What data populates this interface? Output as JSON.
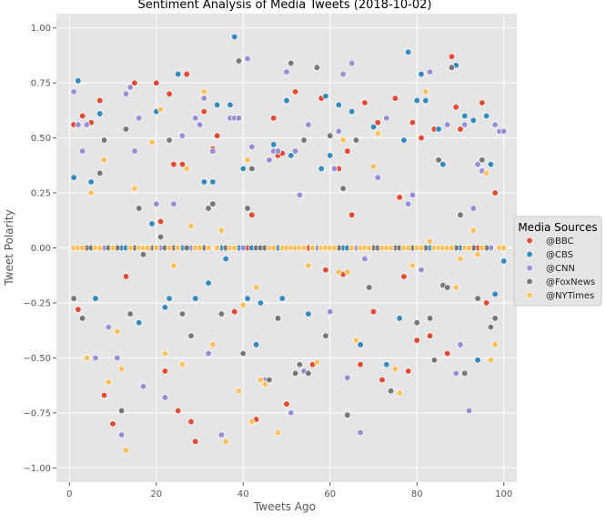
{
  "chart_data": {
    "type": "scatter",
    "title": "Sentiment Analysis of Media Tweets (2018-10-02)",
    "xlabel": "Tweets Ago",
    "ylabel": "Tweet Polarity",
    "xlim": [
      -3,
      103
    ],
    "ylim": [
      -1.0,
      1.0
    ],
    "xticks": [
      0,
      20,
      40,
      60,
      80,
      100
    ],
    "yticks": [
      -1.0,
      -0.75,
      -0.5,
      -0.25,
      0.0,
      0.25,
      0.5,
      0.75,
      1.0
    ],
    "xtick_labels": [
      "0",
      "20",
      "40",
      "60",
      "80",
      "100"
    ],
    "ytick_labels": [
      "−1.00",
      "−0.75",
      "−0.50",
      "−0.25",
      "0.00",
      "0.25",
      "0.50",
      "0.75",
      "1.00"
    ],
    "grid": true,
    "legend": {
      "title": "Media Sources",
      "placement": "center-right outside"
    },
    "series": [
      {
        "name": "@BBC",
        "color": "#e24a33",
        "x": [
          1,
          2,
          3,
          4,
          5,
          6,
          7,
          8,
          9,
          10,
          11,
          12,
          13,
          14,
          15,
          16,
          17,
          18,
          19,
          20,
          21,
          22,
          23,
          24,
          25,
          26,
          27,
          28,
          29,
          30,
          31,
          32,
          33,
          34,
          35,
          36,
          37,
          38,
          39,
          40,
          41,
          42,
          43,
          44,
          45,
          46,
          47,
          48,
          49,
          50,
          51,
          52,
          53,
          54,
          55,
          56,
          57,
          58,
          59,
          60,
          61,
          62,
          63,
          64,
          65,
          66,
          67,
          68,
          69,
          70,
          71,
          72,
          73,
          74,
          75,
          76,
          77,
          78,
          79,
          80,
          81,
          82,
          83,
          84,
          85,
          86,
          87,
          88,
          89,
          90,
          91,
          92,
          93,
          94,
          95,
          96,
          97,
          98,
          99,
          100
        ],
        "y": [
          0.56,
          -0.28,
          0.6,
          0.0,
          0.57,
          0.0,
          0.67,
          -0.67,
          0.0,
          -0.8,
          0.0,
          0.0,
          -0.13,
          0.0,
          0.75,
          0.0,
          0.0,
          0.0,
          0.0,
          0.75,
          0.12,
          -0.56,
          0.7,
          0.38,
          -0.74,
          0.38,
          0.79,
          -0.79,
          -0.88,
          0.0,
          0.62,
          0.0,
          0.45,
          0.51,
          0.0,
          0.0,
          0.0,
          -0.29,
          0.0,
          0.0,
          0.0,
          0.15,
          -0.78,
          0.0,
          0.0,
          0.0,
          0.59,
          0.42,
          0.43,
          -0.71,
          0.0,
          0.71,
          -0.53,
          0.0,
          0.0,
          -0.53,
          0.0,
          0.68,
          -0.1,
          0.0,
          0.0,
          0.36,
          -0.12,
          0.44,
          0.15,
          0.0,
          -0.53,
          0.66,
          0.0,
          -0.29,
          0.57,
          -0.6,
          0.0,
          0.0,
          0.68,
          0.23,
          -0.13,
          -0.56,
          0.57,
          -0.42,
          0.5,
          0.0,
          -0.4,
          0.54,
          0.0,
          0.0,
          -0.48,
          0.87,
          0.64,
          0.54,
          0.0,
          0.0,
          0.0,
          0.0,
          0.66,
          -0.25,
          0.0,
          0.25,
          0.0,
          0.0
        ]
      },
      {
        "name": "@CBS",
        "color": "#348abd",
        "x": [
          1,
          2,
          3,
          4,
          5,
          6,
          7,
          8,
          9,
          10,
          11,
          12,
          13,
          14,
          15,
          16,
          17,
          18,
          19,
          20,
          21,
          22,
          23,
          24,
          25,
          26,
          27,
          28,
          29,
          30,
          31,
          32,
          33,
          34,
          35,
          36,
          37,
          38,
          39,
          40,
          41,
          42,
          43,
          44,
          45,
          46,
          47,
          48,
          49,
          50,
          51,
          52,
          53,
          54,
          55,
          56,
          57,
          58,
          59,
          60,
          61,
          62,
          63,
          64,
          65,
          66,
          67,
          68,
          69,
          70,
          71,
          72,
          73,
          74,
          75,
          76,
          77,
          78,
          79,
          80,
          81,
          82,
          83,
          84,
          85,
          86,
          87,
          88,
          89,
          90,
          91,
          92,
          93,
          94,
          95,
          96,
          97,
          98,
          99,
          100
        ],
        "y": [
          0.32,
          0.76,
          0.0,
          0.0,
          0.3,
          -0.23,
          0.61,
          0.0,
          0.0,
          0.0,
          0.0,
          0.0,
          0.0,
          0.0,
          0.0,
          -0.34,
          0.0,
          0.0,
          0.11,
          0.62,
          0.0,
          -0.27,
          -0.23,
          0.0,
          0.79,
          0.0,
          0.0,
          0.0,
          -0.23,
          0.0,
          0.3,
          -0.16,
          0.3,
          0.65,
          0.0,
          -0.05,
          0.65,
          0.96,
          0.0,
          0.36,
          -0.23,
          0.0,
          -0.44,
          -0.25,
          0.0,
          0.0,
          0.47,
          0.0,
          -0.23,
          0.67,
          0.42,
          0.0,
          0.0,
          0.0,
          -0.3,
          0.0,
          0.0,
          0.36,
          0.69,
          0.42,
          0.0,
          0.65,
          0.0,
          0.0,
          0.62,
          0.0,
          -0.44,
          0.0,
          0.0,
          0.55,
          0.0,
          0.0,
          -0.53,
          0.0,
          0.0,
          -0.32,
          0.49,
          0.89,
          0.0,
          0.67,
          0.79,
          0.67,
          0.0,
          0.0,
          0.54,
          0.38,
          0.0,
          0.0,
          0.83,
          0.0,
          0.6,
          0.0,
          0.58,
          -0.51,
          0.0,
          0.6,
          0.38,
          -0.21,
          0.0,
          -0.06
        ]
      },
      {
        "name": "@CNN",
        "color": "#988ed5",
        "x": [
          1,
          2,
          3,
          4,
          5,
          6,
          7,
          8,
          9,
          10,
          11,
          12,
          13,
          14,
          15,
          16,
          17,
          18,
          19,
          20,
          21,
          22,
          23,
          24,
          25,
          26,
          27,
          28,
          29,
          30,
          31,
          32,
          33,
          34,
          35,
          36,
          37,
          38,
          39,
          40,
          41,
          42,
          43,
          44,
          45,
          46,
          47,
          48,
          49,
          50,
          51,
          52,
          53,
          54,
          55,
          56,
          57,
          58,
          59,
          60,
          61,
          62,
          63,
          64,
          65,
          66,
          67,
          68,
          69,
          70,
          71,
          72,
          73,
          74,
          75,
          76,
          77,
          78,
          79,
          80,
          81,
          82,
          83,
          84,
          85,
          86,
          87,
          88,
          89,
          90,
          91,
          92,
          93,
          94,
          95,
          96,
          97,
          98,
          99,
          100
        ],
        "y": [
          0.71,
          0.56,
          0.44,
          0.56,
          0.0,
          -0.5,
          0.0,
          0.0,
          -0.36,
          0.0,
          -0.5,
          -0.85,
          0.7,
          0.73,
          0.44,
          0.59,
          -0.63,
          0.0,
          0.0,
          0.2,
          0.0,
          -0.68,
          0.0,
          0.2,
          0.0,
          0.51,
          0.0,
          0.0,
          0.59,
          0.56,
          0.68,
          -0.48,
          0.44,
          0.0,
          -0.85,
          0.0,
          0.59,
          0.59,
          0.59,
          0.0,
          0.86,
          0.46,
          0.0,
          0.0,
          -0.6,
          0.4,
          0.44,
          0.44,
          0.0,
          0.8,
          -0.75,
          0.44,
          0.24,
          -0.56,
          0.56,
          0.0,
          0.0,
          0.0,
          0.0,
          -0.29,
          0.36,
          0.53,
          0.79,
          -0.59,
          0.84,
          0.0,
          -0.84,
          -0.05,
          0.0,
          0.0,
          0.32,
          0.0,
          0.59,
          0.0,
          0.0,
          0.0,
          0.0,
          0.2,
          0.24,
          0.0,
          -0.1,
          0.0,
          0.8,
          0.0,
          0.0,
          -0.17,
          0.56,
          0.0,
          -0.57,
          -0.44,
          0.56,
          -0.74,
          0.18,
          0.38,
          0.35,
          0.0,
          0.0,
          0.56,
          0.53,
          0.53
        ]
      },
      {
        "name": "@FoxNews",
        "color": "#777777",
        "x": [
          1,
          2,
          3,
          4,
          5,
          6,
          7,
          8,
          9,
          10,
          11,
          12,
          13,
          14,
          15,
          16,
          17,
          18,
          19,
          20,
          21,
          22,
          23,
          24,
          25,
          26,
          27,
          28,
          29,
          30,
          31,
          32,
          33,
          34,
          35,
          36,
          37,
          38,
          39,
          40,
          41,
          42,
          43,
          44,
          45,
          46,
          47,
          48,
          49,
          50,
          51,
          52,
          53,
          54,
          55,
          56,
          57,
          58,
          59,
          60,
          61,
          62,
          63,
          64,
          65,
          66,
          67,
          68,
          69,
          70,
          71,
          72,
          73,
          74,
          75,
          76,
          77,
          78,
          79,
          80,
          81,
          82,
          83,
          84,
          85,
          86,
          87,
          88,
          89,
          90,
          91,
          92,
          93,
          94,
          95,
          96,
          97,
          98,
          99,
          100
        ],
        "y": [
          -0.23,
          0.0,
          -0.32,
          0.0,
          0.0,
          0.0,
          0.34,
          0.49,
          0.0,
          0.0,
          0.0,
          -0.74,
          0.54,
          -0.3,
          0.0,
          0.18,
          -0.03,
          0.0,
          0.0,
          0.0,
          0.05,
          0.0,
          0.49,
          0.0,
          0.0,
          -0.3,
          0.0,
          -0.4,
          0.0,
          0.0,
          0.0,
          0.18,
          0.2,
          0.0,
          -0.3,
          0.0,
          0.0,
          0.0,
          0.85,
          -0.48,
          0.18,
          0.36,
          0.0,
          0.0,
          0.0,
          -0.6,
          0.0,
          -0.32,
          0.0,
          0.0,
          0.84,
          -0.57,
          -0.53,
          0.49,
          -0.57,
          0.0,
          0.82,
          0.0,
          -0.4,
          0.51,
          0.0,
          0.0,
          0.27,
          -0.76,
          0.0,
          0.49,
          0.0,
          0.0,
          -0.18,
          0.0,
          0.0,
          0.0,
          0.0,
          -0.65,
          0.0,
          0.0,
          0.0,
          0.0,
          0.0,
          -0.34,
          0.0,
          0.0,
          -0.32,
          -0.51,
          0.4,
          -0.17,
          -0.18,
          0.82,
          0.0,
          0.15,
          -0.57,
          0.0,
          0.0,
          -0.23,
          0.4,
          0.0,
          -0.36,
          -0.32,
          0.0,
          0.0
        ]
      },
      {
        "name": "@NYTimes",
        "color": "#fbc15e",
        "x": [
          1,
          2,
          3,
          4,
          5,
          6,
          7,
          8,
          9,
          10,
          11,
          12,
          13,
          14,
          15,
          16,
          17,
          18,
          19,
          20,
          21,
          22,
          23,
          24,
          25,
          26,
          27,
          28,
          29,
          30,
          31,
          32,
          33,
          34,
          35,
          36,
          37,
          38,
          39,
          40,
          41,
          42,
          43,
          44,
          45,
          46,
          47,
          48,
          49,
          50,
          51,
          52,
          53,
          54,
          55,
          56,
          57,
          58,
          59,
          60,
          61,
          62,
          63,
          64,
          65,
          66,
          67,
          68,
          69,
          70,
          71,
          72,
          73,
          74,
          75,
          76,
          77,
          78,
          79,
          80,
          81,
          82,
          83,
          84,
          85,
          86,
          87,
          88,
          89,
          90,
          91,
          92,
          93,
          94,
          95,
          96,
          97,
          98,
          99,
          100
        ],
        "y": [
          0.0,
          0.0,
          0.0,
          -0.5,
          0.25,
          0.0,
          0.0,
          0.4,
          -0.61,
          0.0,
          -0.38,
          -0.55,
          -0.92,
          0.0,
          0.27,
          0.0,
          0.0,
          0.0,
          0.48,
          0.0,
          0.63,
          -0.48,
          0.0,
          -0.08,
          0.0,
          -0.53,
          0.36,
          0.1,
          0.0,
          0.0,
          0.71,
          0.0,
          -0.44,
          0.0,
          0.08,
          -0.88,
          0.0,
          0.0,
          -0.65,
          -0.26,
          0.4,
          -0.79,
          -0.18,
          -0.6,
          -0.62,
          0.0,
          0.0,
          -0.84,
          0.0,
          0.0,
          0.0,
          0.0,
          0.0,
          0.0,
          -0.08,
          0.0,
          -0.52,
          0.0,
          0.0,
          0.0,
          0.0,
          -0.11,
          0.49,
          -0.11,
          0.0,
          -0.42,
          0.0,
          0.0,
          0.0,
          0.37,
          0.52,
          0.0,
          0.0,
          0.0,
          -0.55,
          -0.66,
          0.0,
          0.0,
          -0.08,
          0.0,
          0.0,
          0.71,
          0.03,
          0.0,
          0.0,
          0.0,
          0.0,
          0.0,
          -0.18,
          -0.05,
          0.0,
          0.0,
          0.08,
          -0.03,
          0.0,
          0.34,
          -0.51,
          -0.44,
          0.0,
          0.0
        ]
      }
    ]
  }
}
